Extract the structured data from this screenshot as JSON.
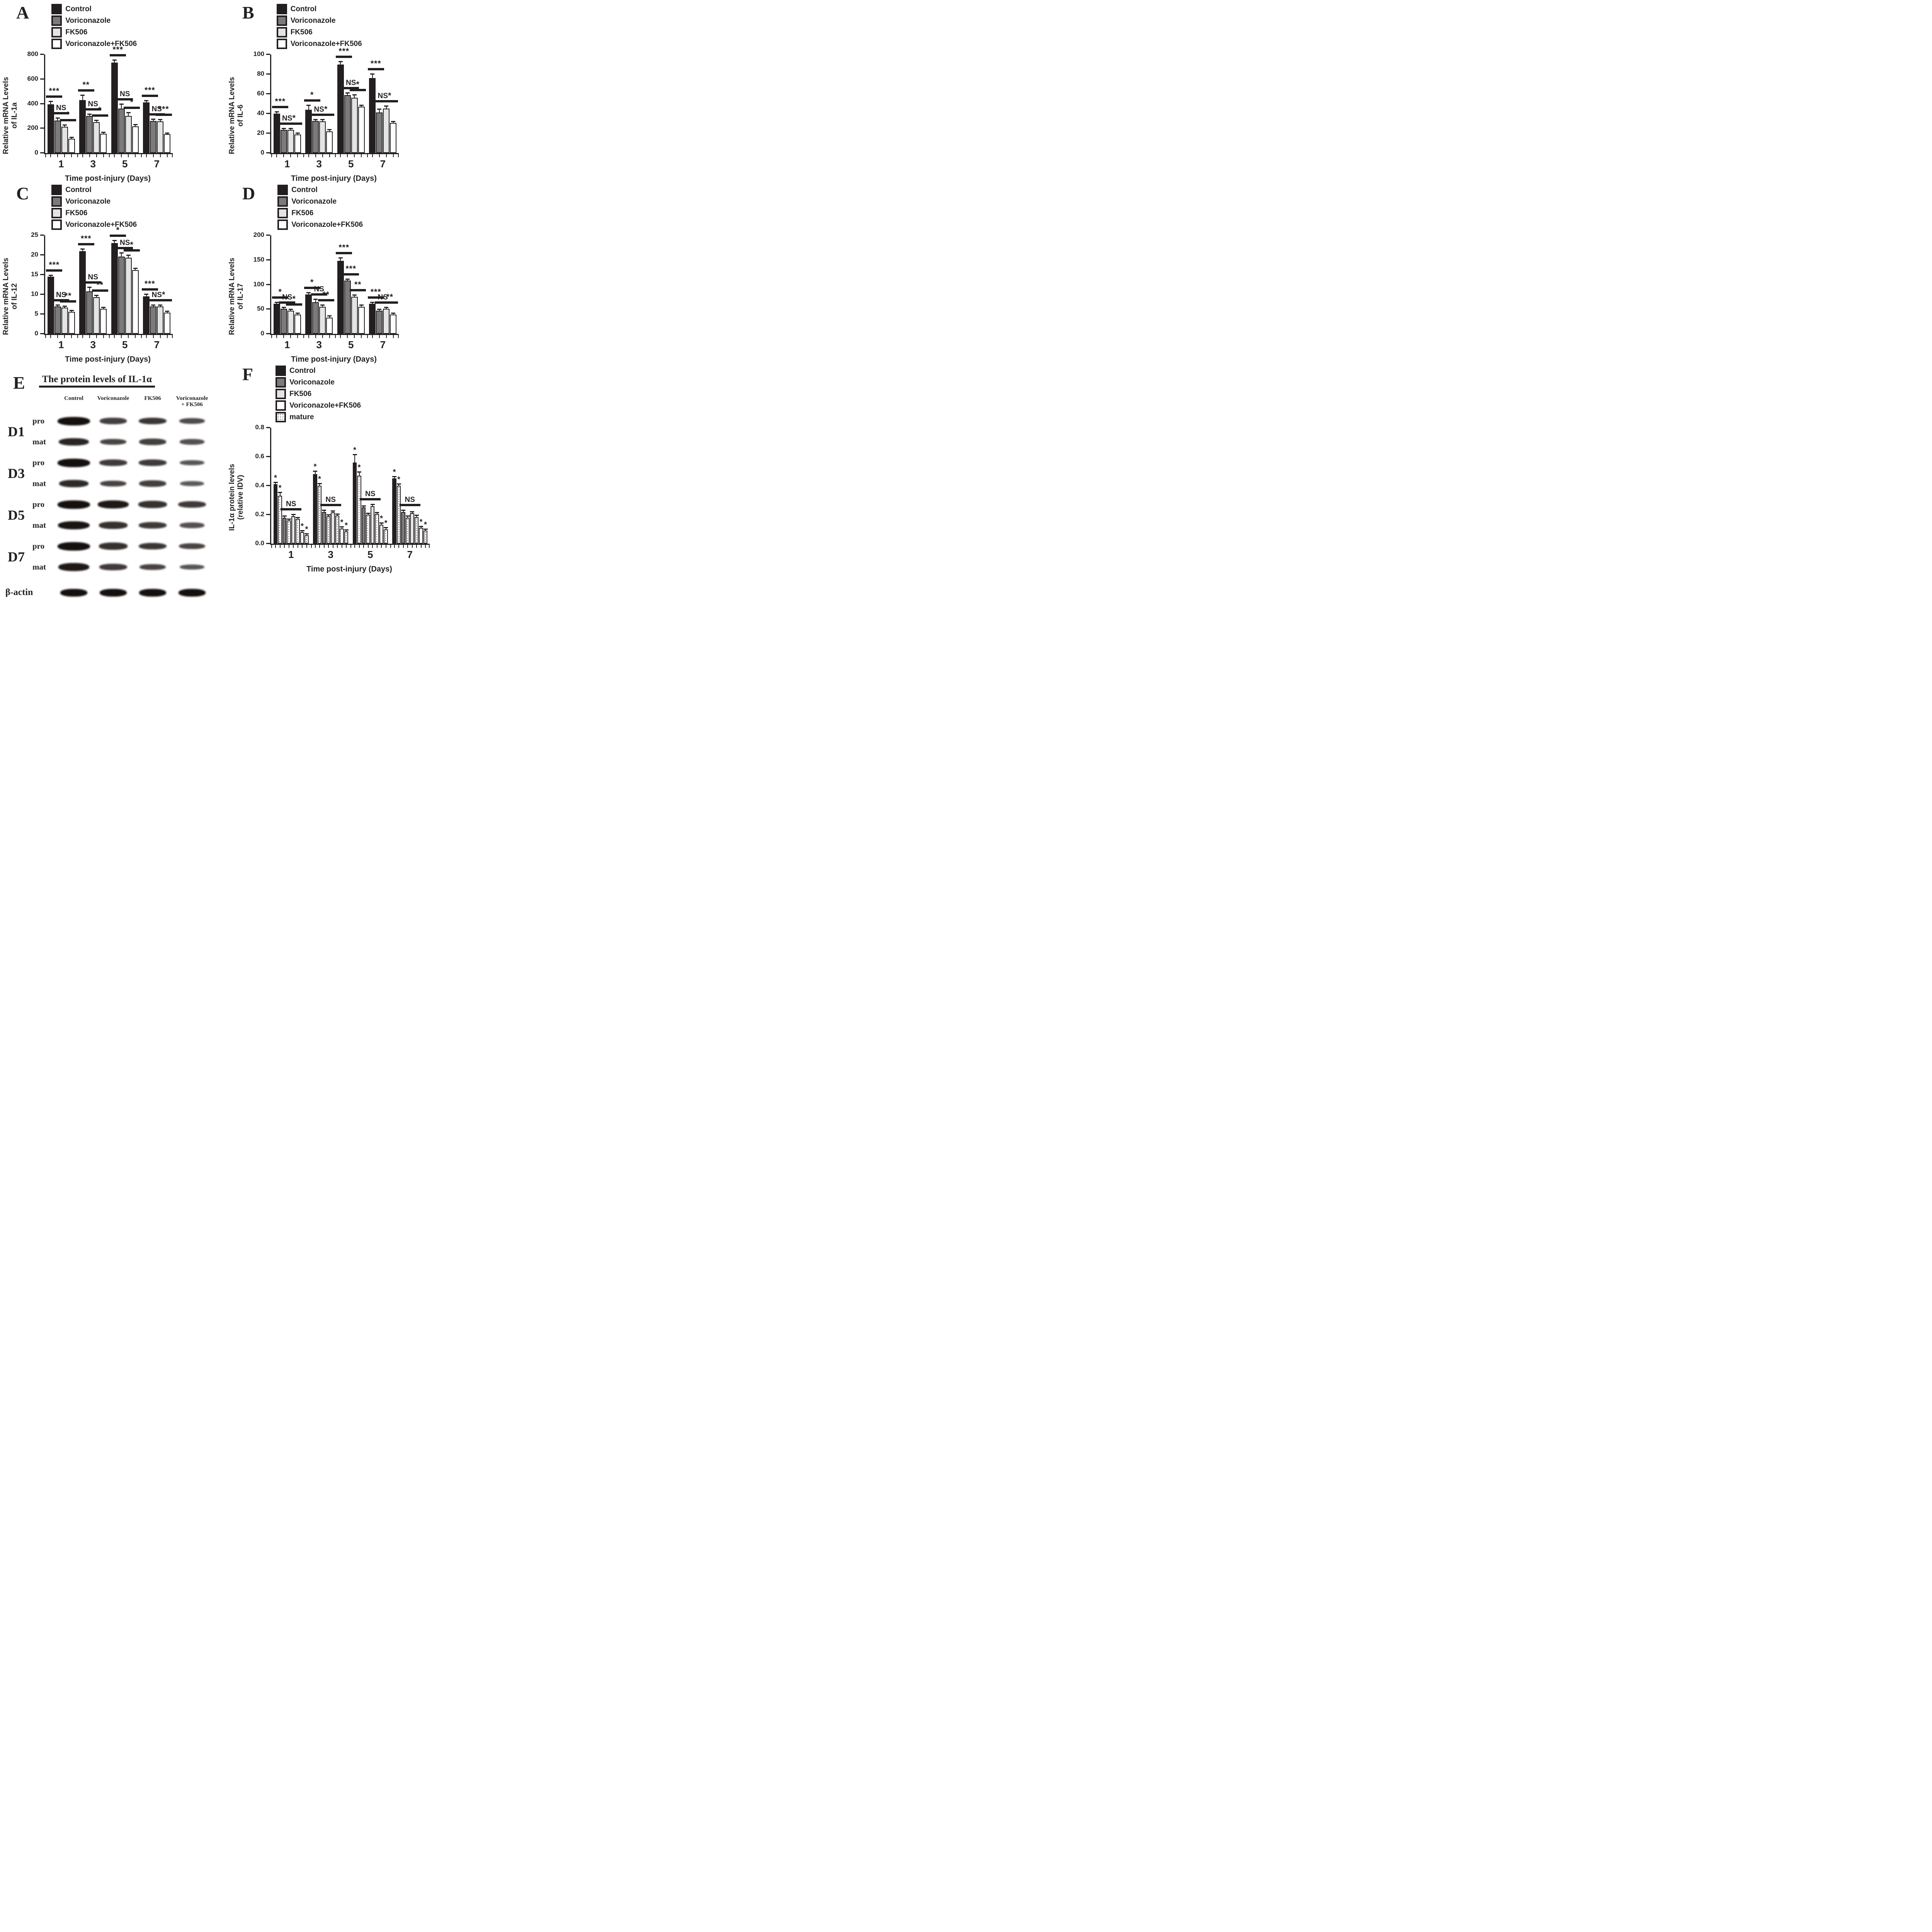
{
  "colors": {
    "black": "#231f20",
    "gray": "#7b7b7b",
    "lightgray": "#e4e4e4",
    "white": "#ffffff"
  },
  "xlabel": "Time post-injury (Days)",
  "chart_data": [
    {
      "panel": "A",
      "type": "bar",
      "ylabel_lines": [
        "Relative mRNA Levels",
        "of IL-1a"
      ],
      "xlabel": "Time post-injury (Days)",
      "categories": [
        "1",
        "3",
        "5",
        "7"
      ],
      "ylim": [
        0,
        800
      ],
      "yticks": [
        0,
        200,
        400,
        600,
        800
      ],
      "legend_pos": "top",
      "grid": false,
      "series": [
        {
          "name": "Control",
          "fill": "black",
          "values": [
            395,
            430,
            735,
            410
          ],
          "errors": [
            18,
            35,
            15,
            10
          ]
        },
        {
          "name": "Voriconazole",
          "fill": "gray",
          "values": [
            265,
            300,
            360,
            262
          ],
          "errors": [
            15,
            10,
            32,
            8
          ]
        },
        {
          "name": "FK506",
          "fill": "lightgray",
          "values": [
            212,
            252,
            302,
            258
          ],
          "errors": [
            12,
            10,
            20,
            8
          ]
        },
        {
          "name": "Voriconazole+FK506",
          "fill": "white",
          "values": [
            116,
            156,
            218,
            153
          ],
          "errors": [
            5,
            6,
            8,
            5
          ]
        }
      ],
      "sig": [
        [
          "***",
          "NS",
          "*"
        ],
        [
          "**",
          "NS",
          "*"
        ],
        [
          "***",
          "NS",
          "*"
        ],
        [
          "***",
          "NS",
          "***"
        ]
      ]
    },
    {
      "panel": "B",
      "type": "bar",
      "ylabel_lines": [
        "Relative mRNA Levels",
        "of IL-6"
      ],
      "xlabel": "Time post-injury (Days)",
      "categories": [
        "1",
        "3",
        "5",
        "7"
      ],
      "ylim": [
        0,
        100
      ],
      "yticks": [
        0,
        20,
        40,
        60,
        80,
        100
      ],
      "legend_pos": "top",
      "grid": false,
      "series": [
        {
          "name": "Control",
          "fill": "black",
          "values": [
            40,
            44,
            90,
            76
          ],
          "errors": [
            1,
            4,
            2,
            3.5
          ]
        },
        {
          "name": "Voriconazole",
          "fill": "gray",
          "values": [
            23.5,
            32.5,
            59,
            41
          ],
          "errors": [
            0.8,
            1,
            1.5,
            3
          ]
        },
        {
          "name": "FK506",
          "fill": "lightgray",
          "values": [
            23.5,
            32,
            56,
            45
          ],
          "errors": [
            1,
            1.5,
            2.5,
            2
          ]
        },
        {
          "name": "Voriconazole+FK506",
          "fill": "white",
          "values": [
            19,
            22,
            47,
            30.5
          ],
          "errors": [
            0.8,
            1,
            1,
            1
          ]
        }
      ],
      "sig": [
        [
          "***",
          "NS",
          "*"
        ],
        [
          "*",
          "NS",
          "*"
        ],
        [
          "***",
          "NS",
          "*"
        ],
        [
          "***",
          "NS",
          "*"
        ]
      ]
    },
    {
      "panel": "C",
      "type": "bar",
      "ylabel_lines": [
        "Relative mRNA Levels",
        "of IL-12"
      ],
      "xlabel": "Time post-injury (Days)",
      "categories": [
        "1",
        "3",
        "5",
        "7"
      ],
      "ylim": [
        0,
        25
      ],
      "yticks": [
        0,
        5,
        10,
        15,
        20,
        25
      ],
      "legend_pos": "top",
      "grid": false,
      "series": [
        {
          "name": "Control",
          "fill": "black",
          "values": [
            14.5,
            21,
            23,
            9.5
          ],
          "errors": [
            0.2,
            0.4,
            0.5,
            0.4
          ]
        },
        {
          "name": "Voriconazole",
          "fill": "gray",
          "values": [
            7,
            10.8,
            19.6,
            7
          ],
          "errors": [
            0.2,
            0.9,
            0.8,
            0.15
          ]
        },
        {
          "name": "FK506",
          "fill": "lightgray",
          "values": [
            6.7,
            9.3,
            19.3,
            7
          ],
          "errors": [
            0.2,
            0.3,
            0.5,
            0.15
          ]
        },
        {
          "name": "Voriconazole+FK506",
          "fill": "white",
          "values": [
            5.6,
            6.4,
            16.2,
            5.4
          ],
          "errors": [
            0.15,
            0.2,
            0.3,
            0.15
          ]
        }
      ],
      "sig": [
        [
          "***",
          "NS",
          "**"
        ],
        [
          "***",
          "NS",
          "**"
        ],
        [
          "*",
          "NS",
          "*"
        ],
        [
          "***",
          "NS",
          "*"
        ]
      ]
    },
    {
      "panel": "D",
      "type": "bar",
      "ylabel_lines": [
        "Relative mRNA Levels",
        "of IL-17"
      ],
      "xlabel": "Time post-injury (Days)",
      "categories": [
        "1",
        "3",
        "5",
        "7"
      ],
      "ylim": [
        0,
        200
      ],
      "yticks": [
        0,
        50,
        100,
        150,
        200
      ],
      "legend_pos": "top",
      "grid": false,
      "series": [
        {
          "name": "Control",
          "fill": "black",
          "values": [
            61,
            80,
            148,
            61
          ],
          "errors": [
            2,
            2,
            5,
            2
          ]
        },
        {
          "name": "Voriconazole",
          "fill": "gray",
          "values": [
            51,
            64,
            108,
            47
          ],
          "errors": [
            1.5,
            5,
            2,
            1.5
          ]
        },
        {
          "name": "FK506",
          "fill": "lightgray",
          "values": [
            47,
            55,
            75,
            51
          ],
          "errors": [
            1.5,
            2,
            3,
            1.5
          ]
        },
        {
          "name": "Voriconazole+FK506",
          "fill": "white",
          "values": [
            39,
            33,
            55,
            39
          ],
          "errors": [
            1.5,
            2,
            2,
            1.5
          ]
        }
      ],
      "sig": [
        [
          "*",
          "NS",
          "*"
        ],
        [
          "*",
          "NS",
          "**"
        ],
        [
          "***",
          "***",
          "**"
        ],
        [
          "***",
          "NS",
          "**"
        ]
      ]
    },
    {
      "panel": "F",
      "type": "bar-paired",
      "ylabel_lines": [
        "IL-1α  protein levels",
        "(relative IDV)"
      ],
      "xlabel": "Time post-injury (Days)",
      "categories": [
        "1",
        "3",
        "5",
        "7"
      ],
      "ylim": [
        0,
        0.8
      ],
      "yticks": [
        0,
        0.2,
        0.4,
        0.6,
        0.8
      ],
      "ytick_decimals": 1,
      "legend_pos": "top",
      "grid": false,
      "legend": [
        {
          "label": "Control",
          "fill": "black"
        },
        {
          "label": "Voriconazole",
          "fill": "gray"
        },
        {
          "label": "FK506",
          "fill": "lightgray"
        },
        {
          "label": "Voriconazole+FK506",
          "fill": "white"
        },
        {
          "label": "mature",
          "fill": "dotted"
        }
      ],
      "series": [
        {
          "name": "Control (pro)",
          "fill": "black",
          "values": [
            0.41,
            0.48,
            0.56,
            0.45
          ],
          "errors": [
            0.01,
            0.015,
            0.05,
            0.008
          ],
          "star": true
        },
        {
          "name": "Control (mature)",
          "fill": "dotted",
          "values": [
            0.33,
            0.4,
            0.47,
            0.4
          ],
          "errors": [
            0.02,
            0.012,
            0.02,
            0.008
          ],
          "star": true
        },
        {
          "name": "Voriconazole (pro)",
          "fill": "gray",
          "values": [
            0.18,
            0.22,
            0.25,
            0.22
          ],
          "errors": [
            0.007,
            0.007,
            0.007,
            0.007
          ],
          "star": false
        },
        {
          "name": "Voriconazole (mature)",
          "fill": "dotted",
          "values": [
            0.16,
            0.19,
            0.2,
            0.18
          ],
          "errors": [
            0.006,
            0.006,
            0.006,
            0.006
          ],
          "star": false
        },
        {
          "name": "FK506 (pro)",
          "fill": "lightgray",
          "values": [
            0.19,
            0.215,
            0.26,
            0.21
          ],
          "errors": [
            0.007,
            0.007,
            0.007,
            0.007
          ],
          "star": false
        },
        {
          "name": "FK506 (mature)",
          "fill": "dotted",
          "values": [
            0.17,
            0.195,
            0.205,
            0.185
          ],
          "errors": [
            0.006,
            0.006,
            0.006,
            0.006
          ],
          "star": false
        },
        {
          "name": "Voriconazole+FK506 (pro)",
          "fill": "white",
          "values": [
            0.08,
            0.105,
            0.13,
            0.11
          ],
          "errors": [
            0.006,
            0.006,
            0.008,
            0.006
          ],
          "star": true
        },
        {
          "name": "Voriconazole+FK506 (mature)",
          "fill": "dotted",
          "values": [
            0.06,
            0.085,
            0.1,
            0.09
          ],
          "errors": [
            0.005,
            0.005,
            0.006,
            0.005
          ],
          "star": true
        }
      ],
      "ns_span": [
        2,
        5
      ],
      "ns_label": "NS"
    }
  ],
  "blot": {
    "panel": "E",
    "title": "The protein levels of IL-1α",
    "columns": [
      "Control",
      "Voriconazole",
      "FK506",
      "Voriconazole|+ FK506"
    ],
    "band_labels": [
      "pro",
      "mat"
    ],
    "rows": [
      {
        "day": "D1",
        "pro": [
          1.0,
          0.55,
          0.65,
          0.45
        ],
        "mat": [
          0.8,
          0.5,
          0.55,
          0.4
        ]
      },
      {
        "day": "D3",
        "pro": [
          1.0,
          0.6,
          0.6,
          0.35
        ],
        "mat": [
          0.75,
          0.5,
          0.55,
          0.3
        ]
      },
      {
        "day": "D5",
        "pro": [
          1.0,
          0.9,
          0.7,
          0.6
        ],
        "mat": [
          0.95,
          0.7,
          0.6,
          0.4
        ]
      },
      {
        "day": "D7",
        "pro": [
          1.0,
          0.7,
          0.65,
          0.5
        ],
        "mat": [
          0.9,
          0.6,
          0.5,
          0.35
        ]
      }
    ],
    "control_row": {
      "label": "β-actin",
      "intensities": [
        1,
        1,
        1,
        1
      ]
    }
  }
}
